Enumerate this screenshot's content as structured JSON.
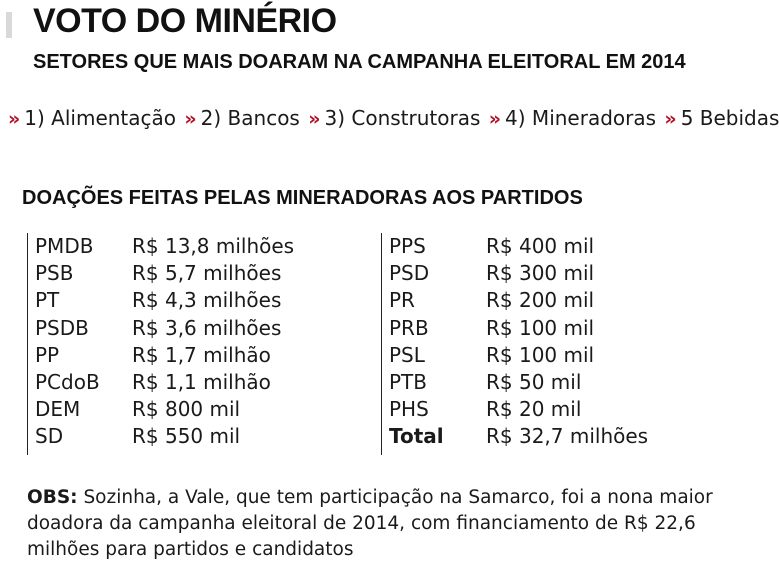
{
  "header": {
    "title": "VOTO DO MINÉRIO",
    "subtitle": "SETORES QUE MAIS DOARAM NA CAMPANHA ELEITORAL EM 2014"
  },
  "sectors": [
    "1) Alimentação",
    "2) Bancos",
    "3) Construtoras",
    "4) Mineradoras",
    "5 Bebidas"
  ],
  "arrow_glyph": "»",
  "accent_color": "#b0142a",
  "donations": {
    "title": "DOAÇÕES FEITAS PELAS MINERADORAS AOS PARTIDOS",
    "left": [
      {
        "party": "PMDB",
        "amount": "R$ 13,8 milhões"
      },
      {
        "party": "PSB",
        "amount": "R$ 5,7 milhões"
      },
      {
        "party": "PT",
        "amount": "R$ 4,3 milhões"
      },
      {
        "party": "PSDB",
        "amount": "R$ 3,6 milhões"
      },
      {
        "party": "PP",
        "amount": "R$ 1,7 milhão"
      },
      {
        "party": "PCdoB",
        "amount": "R$ 1,1 milhão"
      },
      {
        "party": "DEM",
        "amount": "R$ 800 mil"
      },
      {
        "party": "SD",
        "amount": "R$ 550 mil"
      }
    ],
    "right": [
      {
        "party": "PPS",
        "amount": "R$ 400 mil"
      },
      {
        "party": "PSD",
        "amount": "R$ 300 mil"
      },
      {
        "party": "PR",
        "amount": "R$ 200 mil"
      },
      {
        "party": "PRB",
        "amount": "R$ 100 mil"
      },
      {
        "party": "PSL",
        "amount": "R$ 100 mil"
      },
      {
        "party": "PTB",
        "amount": "R$ 50 mil"
      },
      {
        "party": "PHS",
        "amount": "R$ 20 mil"
      }
    ],
    "total": {
      "label": "Total",
      "amount": "R$ 32,7 milhões"
    }
  },
  "obs": {
    "label": "OBS:",
    "text": " Sozinha, a Vale, que tem participação na Samarco, foi a nona maior doadora da campanha eleitoral de 2014, com financiamento de R$ 22,6 milhões para partidos e candidatos"
  }
}
